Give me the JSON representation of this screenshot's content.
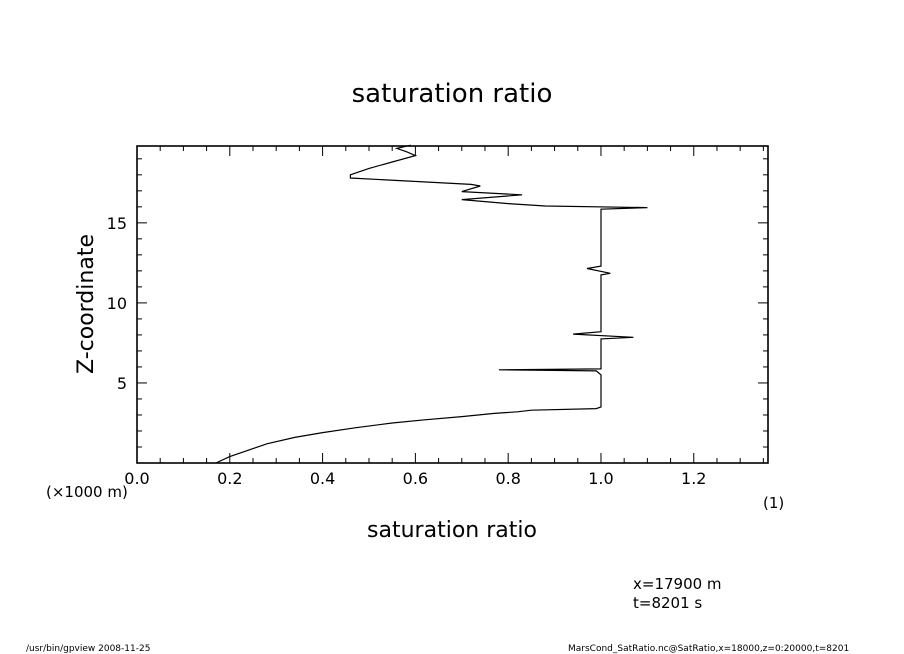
{
  "chart_data": {
    "type": "line",
    "title": "saturation ratio",
    "xlabel": "saturation ratio",
    "xunit": "(1)",
    "ylabel": "Z-coordinate",
    "yunit": "(×1000 m)",
    "xlim": [
      0,
      1.36
    ],
    "ylim": [
      0,
      19.8
    ],
    "grid": false,
    "x_ticks": [
      0.0,
      0.2,
      0.4,
      0.6,
      0.8,
      1.0,
      1.2
    ],
    "x_tick_labels": [
      "0.0",
      "0.2",
      "0.4",
      "0.6",
      "0.8",
      "1.0",
      "1.2"
    ],
    "y_ticks": [
      5,
      10,
      15
    ],
    "y_tick_labels": [
      "5",
      "10",
      "15"
    ],
    "series": [
      {
        "name": "",
        "x": [
          0.17,
          0.2,
          0.24,
          0.28,
          0.34,
          0.4,
          0.47,
          0.55,
          0.62,
          0.7,
          0.77,
          0.82,
          0.85,
          0.99,
          1.0,
          1.0,
          0.99,
          0.78,
          1.0,
          1.0,
          1.0,
          1.0,
          1.07,
          0.94,
          1.0,
          1.0,
          1.0,
          1.0,
          1.0,
          1.02,
          0.97,
          1.0,
          1.0,
          1.0,
          1.0,
          1.1,
          0.88,
          0.8,
          0.7,
          0.83,
          0.7,
          0.74,
          0.72,
          0.46,
          0.46,
          0.5,
          0.55,
          0.6,
          0.58,
          0.56,
          0.59
        ],
        "y": [
          0.0,
          0.4,
          0.8,
          1.2,
          1.6,
          1.9,
          2.2,
          2.5,
          2.7,
          2.9,
          3.1,
          3.2,
          3.3,
          3.4,
          3.5,
          5.5,
          5.75,
          5.82,
          5.88,
          6.5,
          7.5,
          7.75,
          7.85,
          8.05,
          8.2,
          10.0,
          11.5,
          11.65,
          11.75,
          11.85,
          12.15,
          12.3,
          14.0,
          15.7,
          15.85,
          15.95,
          16.05,
          16.2,
          16.45,
          16.75,
          16.95,
          17.3,
          17.4,
          17.8,
          18.0,
          18.4,
          18.8,
          19.2,
          19.45,
          19.65,
          19.85
        ]
      }
    ]
  },
  "footer": {
    "left": "/usr/bin/gpview   2008-11-25",
    "right": "MarsCond_SatRatio.nc@SatRatio,x=18000,z=0:20000,t=8201"
  },
  "info": {
    "line1": "x=17900  m",
    "line2": "t=8201  s"
  }
}
